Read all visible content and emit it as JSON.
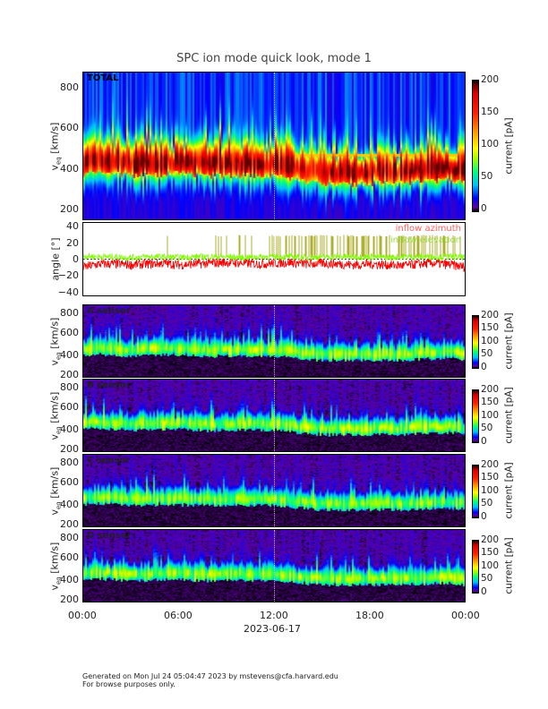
{
  "title": "SPC ion mode quick look, mode 1",
  "footer": {
    "line1": "Generated on Mon Jul 24 05:04:47 2023 by mstevens@cfa.harvard.edu",
    "line2": "For browse purposes only."
  },
  "xaxis": {
    "ticks": [
      "00:00",
      "06:00",
      "12:00",
      "18:00",
      "00:00"
    ],
    "date": "2023-06-17"
  },
  "colors": {
    "azimuth": "#ff0000",
    "elevation": "#80ff00",
    "elevation_spike": "#b0b030"
  },
  "chart_data": [
    {
      "type": "heatmap",
      "name": "TOTAL",
      "label": "TOTAL",
      "ylabel": "v_eq [km/s]",
      "ylabel_main": "v",
      "ylabel_sub": "eq",
      "ylabel_unit": "[km/s]",
      "ylim": [
        147,
        875
      ],
      "yticks": [
        "800",
        "600",
        "400",
        "200"
      ],
      "ytick_values": [
        800,
        600,
        400,
        200
      ],
      "xlim_hours": [
        0,
        24
      ],
      "colorbar": {
        "label": "current [pA]",
        "range": [
          0,
          200
        ],
        "ticks": [
          "200",
          "150",
          "100",
          "50",
          "0"
        ]
      },
      "peak_velocity_hourly": [
        430,
        440,
        430,
        420,
        425,
        430,
        430,
        420,
        420,
        420,
        425,
        420,
        420,
        405,
        390,
        380,
        380,
        380,
        380,
        385,
        380,
        390,
        395,
        400,
        380
      ],
      "background": 20,
      "peak_current": 170
    },
    {
      "type": "line",
      "name": "angle",
      "ylabel": "angle [°]",
      "ylim": [
        -45,
        45
      ],
      "yticks": [
        "40",
        "20",
        "0",
        "−20",
        "−40"
      ],
      "ytick_values": [
        40,
        20,
        0,
        -20,
        -40
      ],
      "legend": [
        "inflow azimuth",
        "inflow elevation"
      ],
      "legend_placement": "top-right",
      "series": [
        {
          "name": "inflow azimuth",
          "hourly": [
            -10,
            -6,
            -6,
            -7,
            -6,
            -5,
            -7,
            -6,
            -5,
            -4,
            -5,
            -6,
            -5,
            -4,
            -6,
            -5,
            -6,
            -7,
            -6,
            -7,
            -8,
            -6,
            -5,
            -7,
            -10
          ]
        },
        {
          "name": "inflow elevation",
          "hourly": [
            4,
            3,
            3,
            2,
            3,
            3,
            2,
            3,
            3,
            3,
            2,
            3,
            3,
            3,
            2,
            3,
            3,
            3,
            3,
            2,
            3,
            3,
            3,
            3,
            2
          ],
          "spike_level": 28
        }
      ]
    },
    {
      "type": "heatmap",
      "name": "A sensor",
      "label": "A sensor",
      "ylabel_main": "v",
      "ylabel_sub": "eq",
      "ylabel_unit": "[km/s]",
      "ylim": [
        195,
        850
      ],
      "yticks": [
        "800",
        "600",
        "400",
        "200"
      ],
      "ytick_values": [
        800,
        600,
        400,
        200
      ],
      "colorbar": {
        "label": "current [pA]",
        "range": [
          0,
          200
        ],
        "ticks": [
          "200",
          "150",
          "100",
          "50",
          "0"
        ]
      },
      "peak_current": 80
    },
    {
      "type": "heatmap",
      "name": "B sensor",
      "label": "B sensor",
      "ylabel_main": "v",
      "ylabel_sub": "eq",
      "ylabel_unit": "[km/s]",
      "ylim": [
        195,
        850
      ],
      "yticks": [
        "800",
        "600",
        "400",
        "200"
      ],
      "ytick_values": [
        800,
        600,
        400,
        200
      ],
      "colorbar": {
        "label": "current [pA]",
        "range": [
          0,
          200
        ],
        "ticks": [
          "200",
          "150",
          "100",
          "50",
          "0"
        ]
      },
      "peak_current": 80
    },
    {
      "type": "heatmap",
      "name": "C sensor",
      "label": "C sensor",
      "ylabel_main": "v",
      "ylabel_sub": "eq",
      "ylabel_unit": "[km/s]",
      "ylim": [
        195,
        850
      ],
      "yticks": [
        "800",
        "600",
        "400",
        "200"
      ],
      "ytick_values": [
        800,
        600,
        400,
        200
      ],
      "colorbar": {
        "label": "current [pA]",
        "range": [
          0,
          200
        ],
        "ticks": [
          "200",
          "150",
          "100",
          "50",
          "0"
        ]
      },
      "peak_current": 75
    },
    {
      "type": "heatmap",
      "name": "D sensor",
      "label": "D sensor",
      "ylabel_main": "v",
      "ylabel_sub": "eq",
      "ylabel_unit": "[km/s]",
      "ylim": [
        195,
        850
      ],
      "yticks": [
        "800",
        "600",
        "400",
        "200"
      ],
      "ytick_values": [
        800,
        600,
        400,
        200
      ],
      "colorbar": {
        "label": "current [pA]",
        "range": [
          0,
          200
        ],
        "ticks": [
          "200",
          "150",
          "100",
          "50",
          "0"
        ]
      },
      "peak_current": 80
    }
  ]
}
